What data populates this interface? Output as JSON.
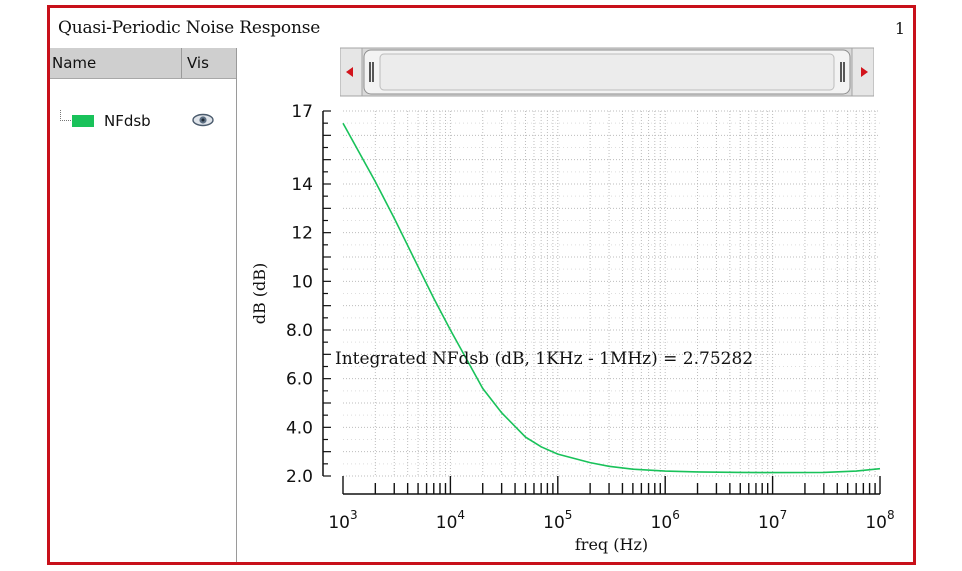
{
  "window": {
    "title": "Quasi-Periodic Noise Response",
    "index": "1"
  },
  "legend": {
    "col_name": "Name",
    "col_vis": "Vis",
    "traces": [
      {
        "name": "NFdsb",
        "color": "#19c25a",
        "visible": true,
        "vis_icon": "eye-icon"
      }
    ]
  },
  "chart_data": {
    "type": "line",
    "xscale": "log",
    "xlabel": "freq (Hz)",
    "ylabel": "dB (dB)",
    "xlim": [
      1000,
      100000000
    ],
    "ylim": [
      2.0,
      17
    ],
    "y_ticks": [
      2.0,
      4.0,
      6.0,
      8.0,
      10,
      12,
      14,
      17
    ],
    "y_tick_labels": [
      "2.0",
      "4.0",
      "6.0",
      "8.0",
      "10",
      "12",
      "14",
      "17"
    ],
    "x_ticks": [
      {
        "value": 1000,
        "base": "10",
        "exp": "3"
      },
      {
        "value": 10000,
        "base": "10",
        "exp": "4"
      },
      {
        "value": 100000,
        "base": "10",
        "exp": "5"
      },
      {
        "value": 1000000,
        "base": "10",
        "exp": "6"
      },
      {
        "value": 10000000,
        "base": "10",
        "exp": "7"
      },
      {
        "value": 100000000,
        "base": "10",
        "exp": "8"
      }
    ],
    "grid": true,
    "series": [
      {
        "name": "NFdsb",
        "color": "#19c25a",
        "x": [
          1000,
          2000,
          3000,
          5000,
          7000,
          10000,
          15000,
          20000,
          30000,
          50000,
          70000,
          100000,
          200000,
          300000,
          500000,
          1000000,
          2000000,
          5000000,
          10000000,
          30000000,
          60000000,
          100000000
        ],
        "y": [
          16.5,
          14.1,
          12.6,
          10.6,
          9.3,
          8.0,
          6.6,
          5.6,
          4.6,
          3.6,
          3.2,
          2.9,
          2.55,
          2.4,
          2.28,
          2.2,
          2.17,
          2.15,
          2.14,
          2.15,
          2.2,
          2.3
        ]
      }
    ],
    "annotation": "Integrated NFdsb (dB, 1KHz - 1MHz) = 2.75282"
  }
}
